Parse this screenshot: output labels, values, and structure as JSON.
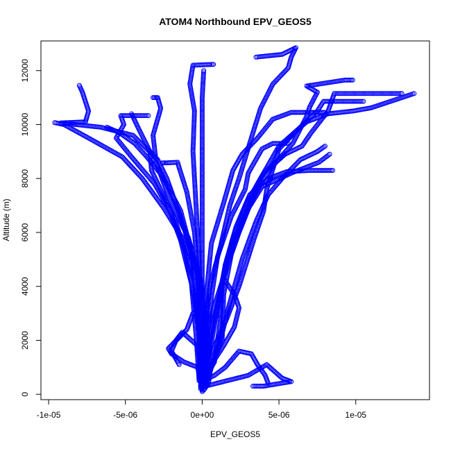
{
  "chart_data": {
    "type": "scatter",
    "title": "ATOM4 Northbound EPV_GEOS5",
    "xlabel": "EPV_GEOS5",
    "ylabel": "Altitude (m)",
    "xlim": [
      -1.05e-05,
      1.48e-05
    ],
    "ylim": [
      -200,
      13100
    ],
    "x_ticks": [
      {
        "value": -1e-05,
        "label": "-1e-05"
      },
      {
        "value": -5e-06,
        "label": "-5e-06"
      },
      {
        "value": 0,
        "label": "0e+00"
      },
      {
        "value": 5e-06,
        "label": "5e-06"
      },
      {
        "value": 1e-05,
        "label": "1e-05"
      }
    ],
    "y_ticks": [
      {
        "value": 0,
        "label": "0"
      },
      {
        "value": 2000,
        "label": "2000"
      },
      {
        "value": 4000,
        "label": "4000"
      },
      {
        "value": 6000,
        "label": "6000"
      },
      {
        "value": 8000,
        "label": "8000"
      },
      {
        "value": 10000,
        "label": "10000"
      },
      {
        "value": 12000,
        "label": "12000"
      }
    ],
    "grid": false,
    "legend": "none",
    "marker": "open-circle",
    "color": "#0000ff",
    "series": [
      {
        "values": [
          [
            0,
            150
          ],
          [
            -1e-07,
            800
          ],
          [
            -2e-07,
            2000
          ],
          [
            -3e-07,
            3500
          ],
          [
            -6e-07,
            5000
          ],
          [
            -1.2e-06,
            6200
          ],
          [
            -1.8e-06,
            7200
          ],
          [
            -2.3e-06,
            8000
          ],
          [
            -2.9e-06,
            8700
          ],
          [
            -4.5e-06,
            9600
          ],
          [
            -6.6e-06,
            9900
          ],
          [
            -9.2e-06,
            10060
          ],
          [
            -7.6e-06,
            10100
          ],
          [
            -7.4e-06,
            10500
          ],
          [
            -7.8e-06,
            11200
          ],
          [
            -8e-06,
            11450
          ]
        ]
      },
      {
        "values": [
          [
            2e-07,
            300
          ],
          [
            4e-07,
            1500
          ],
          [
            2e-07,
            3000
          ],
          [
            -3e-07,
            4500
          ],
          [
            -1.3e-06,
            5800
          ],
          [
            -2.5e-06,
            6900
          ],
          [
            -3.9e-06,
            8000
          ],
          [
            -5.2e-06,
            8800
          ],
          [
            -7.4e-06,
            9500
          ],
          [
            -9e-06,
            10000
          ],
          [
            -9.6e-06,
            10070
          ]
        ]
      },
      {
        "values": [
          [
            -1e-07,
            200
          ],
          [
            -1e-07,
            1800
          ],
          [
            -5e-07,
            3500
          ],
          [
            -1.1e-06,
            5300
          ],
          [
            -1.8e-06,
            6500
          ],
          [
            -3.1e-06,
            7800
          ],
          [
            -4.6e-06,
            8800
          ],
          [
            -5.6e-06,
            9500
          ],
          [
            -5.1e-06,
            10000
          ],
          [
            -5.3e-06,
            10330
          ],
          [
            -3.5e-06,
            10330
          ]
        ]
      },
      {
        "values": [
          [
            0,
            100
          ],
          [
            -2e-07,
            2000
          ],
          [
            -4e-07,
            4000
          ],
          [
            -8e-07,
            5500
          ],
          [
            -1.4e-06,
            6800
          ],
          [
            -2.6e-06,
            8100
          ],
          [
            -3.6e-06,
            8800
          ],
          [
            -4.4e-06,
            9300
          ],
          [
            -5.4e-06,
            9700
          ],
          [
            -6.2e-06,
            9900
          ]
        ]
      },
      {
        "values": [
          [
            3e-07,
            400
          ],
          [
            2e-07,
            2500
          ],
          [
            -1e-07,
            4200
          ],
          [
            -9e-07,
            5800
          ],
          [
            -2.1e-06,
            7200
          ],
          [
            -3e-06,
            8600
          ],
          [
            -3.2e-06,
            9600
          ],
          [
            -2.7e-06,
            10600
          ],
          [
            -2.9e-06,
            11000
          ],
          [
            -3.2e-06,
            11000
          ]
        ]
      },
      {
        "values": [
          [
            0,
            300
          ],
          [
            -1e-07,
            2500
          ],
          [
            -3e-07,
            4500
          ],
          [
            -5e-07,
            6000
          ],
          [
            -1e-06,
            7500
          ],
          [
            -1.5e-06,
            8400
          ],
          [
            -1.6e-06,
            8600
          ],
          [
            -2.3e-06,
            8580
          ],
          [
            -2.6e-06,
            8580
          ]
        ]
      },
      {
        "values": [
          [
            -2e-07,
            500
          ],
          [
            -1e-07,
            3000
          ],
          [
            -2e-07,
            5000
          ],
          [
            -4e-07,
            7000
          ],
          [
            -6e-07,
            9000
          ],
          [
            -5e-07,
            10500
          ],
          [
            -8e-07,
            11500
          ],
          [
            -6e-07,
            12200
          ],
          [
            7e-07,
            12230
          ],
          [
            7.3e-07,
            12230
          ]
        ]
      },
      {
        "values": [
          [
            1e-07,
            600
          ],
          [
            2e-07,
            2500
          ],
          [
            5e-07,
            4000
          ],
          [
            1.2e-06,
            5500
          ],
          [
            1.8e-06,
            7000
          ],
          [
            2.4e-06,
            8000
          ],
          [
            3.2e-06,
            9500
          ],
          [
            3.8e-06,
            10600
          ],
          [
            4.6e-06,
            11500
          ],
          [
            5.6e-06,
            12100
          ],
          [
            5.8e-06,
            12500
          ],
          [
            6.1e-06,
            12850
          ],
          [
            5.2e-06,
            12600
          ],
          [
            3.5e-06,
            12500
          ]
        ]
      },
      {
        "values": [
          [
            2e-07,
            400
          ],
          [
            5e-07,
            2000
          ],
          [
            1.1e-06,
            3600
          ],
          [
            1.6e-06,
            5000
          ],
          [
            2.7e-06,
            6500
          ],
          [
            3.6e-06,
            7800
          ],
          [
            5e-06,
            9200
          ],
          [
            6.8e-06,
            10100
          ],
          [
            8.2e-06,
            10400
          ],
          [
            9.8e-06,
            10500
          ],
          [
            1.1e-05,
            10620
          ],
          [
            1.38e-05,
            11150
          ]
        ]
      },
      {
        "values": [
          [
            -1e-07,
            300
          ],
          [
            8e-07,
            1200
          ],
          [
            1.2e-06,
            2800
          ],
          [
            1.3e-06,
            4200
          ],
          [
            2e-06,
            5800
          ],
          [
            3e-06,
            7200
          ],
          [
            4e-06,
            8200
          ],
          [
            5.4e-06,
            8900
          ],
          [
            6.5e-06,
            9200
          ],
          [
            7.1e-06,
            9700
          ],
          [
            8.2e-06,
            10500
          ],
          [
            8.6e-06,
            11150
          ],
          [
            1.3e-05,
            11150
          ]
        ]
      },
      {
        "values": [
          [
            0,
            200
          ],
          [
            5e-07,
            1600
          ],
          [
            1e-06,
            3200
          ],
          [
            1.5e-06,
            4800
          ],
          [
            2.2e-06,
            6200
          ],
          [
            3.1e-06,
            7400
          ],
          [
            4.3e-06,
            8000
          ],
          [
            5.5e-06,
            8250
          ],
          [
            7e-06,
            8300
          ],
          [
            8.5e-06,
            8300
          ]
        ]
      },
      {
        "values": [
          [
            3e-07,
            500
          ],
          [
            1.1e-06,
            1800
          ],
          [
            1.8e-06,
            3400
          ],
          [
            2.6e-06,
            5000
          ],
          [
            3.5e-06,
            6400
          ],
          [
            4.3e-06,
            7400
          ],
          [
            5.2e-06,
            8000
          ],
          [
            6.4e-06,
            8700
          ],
          [
            7.5e-06,
            9000
          ],
          [
            8e-06,
            9200
          ]
        ]
      },
      {
        "values": [
          [
            4e-07,
            800
          ],
          [
            1.3e-06,
            2000
          ],
          [
            1.4e-06,
            3700
          ],
          [
            1.9e-06,
            5200
          ],
          [
            2.8e-06,
            6700
          ],
          [
            3.9e-06,
            7700
          ],
          [
            5.8e-06,
            8200
          ],
          [
            7.6e-06,
            8600
          ],
          [
            8.3e-06,
            8900
          ]
        ]
      },
      {
        "values": [
          [
            2e-07,
            300
          ],
          [
            5e-07,
            1400
          ],
          [
            1.6e-06,
            2800
          ],
          [
            2.4e-06,
            4000
          ],
          [
            3.4e-06,
            5800
          ],
          [
            4e-06,
            6800
          ],
          [
            4.2e-06,
            7600
          ],
          [
            5e-06,
            9100
          ],
          [
            6.2e-06,
            9800
          ],
          [
            7.5e-06,
            10500
          ],
          [
            7.9e-06,
            10860
          ],
          [
            1.05e-05,
            10860
          ]
        ]
      },
      {
        "values": [
          [
            1e-07,
            400
          ],
          [
            2e-07,
            2100
          ],
          [
            8e-07,
            3300
          ],
          [
            1.6e-06,
            4700
          ],
          [
            2.4e-06,
            6000
          ],
          [
            3.1e-06,
            7000
          ],
          [
            3.9e-06,
            7900
          ],
          [
            4.8e-06,
            8600
          ],
          [
            5.9e-06,
            9300
          ],
          [
            6.8e-06,
            10300
          ],
          [
            7e-06,
            10650
          ],
          [
            7.5e-06,
            11200
          ],
          [
            6.8e-06,
            11430
          ],
          [
            9.3e-06,
            11650
          ],
          [
            9.8e-06,
            11650
          ]
        ]
      },
      {
        "values": [
          [
            -2e-07,
            500
          ],
          [
            -4e-07,
            2200
          ],
          [
            -7e-07,
            4100
          ],
          [
            -1.4e-06,
            5700
          ],
          [
            -2.3e-06,
            7100
          ],
          [
            -3.3e-06,
            8300
          ],
          [
            -3.4e-06,
            9000
          ],
          [
            -4.1e-06,
            9800
          ],
          [
            -4.6e-06,
            10400
          ]
        ]
      },
      {
        "values": [
          [
            0,
            400
          ],
          [
            1e-07,
            2200
          ],
          [
            0,
            4000
          ],
          [
            0,
            6000
          ],
          [
            0,
            8000
          ],
          [
            0,
            10000
          ],
          [
            0,
            11000
          ],
          [
            1e-07,
            12000
          ]
        ]
      },
      {
        "values": [
          [
            1e-07,
            300
          ],
          [
            3e-07,
            1900
          ],
          [
            6e-07,
            3600
          ],
          [
            1e-06,
            5100
          ],
          [
            1.9e-06,
            6600
          ],
          [
            2.8e-06,
            7600
          ],
          [
            3e-06,
            8200
          ],
          [
            3.9e-06,
            9100
          ],
          [
            4.6e-06,
            9300
          ],
          [
            5.6e-06,
            9300
          ]
        ]
      },
      {
        "values": [
          [
            -1e-07,
            600
          ],
          [
            2e-07,
            2200
          ],
          [
            3e-07,
            3900
          ],
          [
            6e-07,
            5600
          ],
          [
            1.4e-06,
            7100
          ],
          [
            2e-06,
            8300
          ],
          [
            2.6e-06,
            8900
          ],
          [
            3.6e-06,
            9500
          ],
          [
            4.6e-06,
            10200
          ],
          [
            5.8e-06,
            10450
          ],
          [
            8e-06,
            10450
          ]
        ]
      },
      {
        "values": [
          [
            0,
            200
          ],
          [
            -3e-07,
            1000
          ],
          [
            -1.2e-06,
            1200
          ],
          [
            -2e-06,
            1500
          ],
          [
            -2.2e-06,
            1700
          ],
          [
            -1e-06,
            2400
          ],
          [
            -6e-07,
            3000
          ]
        ]
      },
      {
        "values": [
          [
            2e-07,
            300
          ],
          [
            1.6e-06,
            500
          ],
          [
            3e-06,
            700
          ],
          [
            4.2e-06,
            1100
          ],
          [
            5.2e-06,
            600
          ],
          [
            5.8e-06,
            470
          ],
          [
            4e-06,
            300
          ],
          [
            3.3e-06,
            300
          ]
        ]
      },
      {
        "values": [
          [
            1e-07,
            500
          ],
          [
            8e-07,
            700
          ],
          [
            1.5e-06,
            1000
          ],
          [
            2.4e-06,
            1600
          ],
          [
            3.2e-06,
            1500
          ],
          [
            3.6e-06,
            1100
          ],
          [
            4.1e-06,
            700
          ],
          [
            4.3e-06,
            400
          ]
        ]
      },
      {
        "values": [
          [
            0,
            150
          ],
          [
            -1e-07,
            1000
          ],
          [
            -3e-07,
            1800
          ],
          [
            -1.3e-06,
            2300
          ],
          [
            -1.7e-06,
            2000
          ],
          [
            -2e-06,
            1600
          ],
          [
            -1.5e-06,
            1100
          ]
        ]
      },
      {
        "values": [
          [
            1e-07,
            150
          ],
          [
            4e-07,
            400
          ],
          [
            6e-07,
            1100
          ],
          [
            1.4e-06,
            1800
          ],
          [
            2.1e-06,
            2500
          ],
          [
            2.4e-06,
            3200
          ],
          [
            2.1e-06,
            3700
          ],
          [
            1.5e-06,
            4200
          ]
        ]
      }
    ]
  }
}
